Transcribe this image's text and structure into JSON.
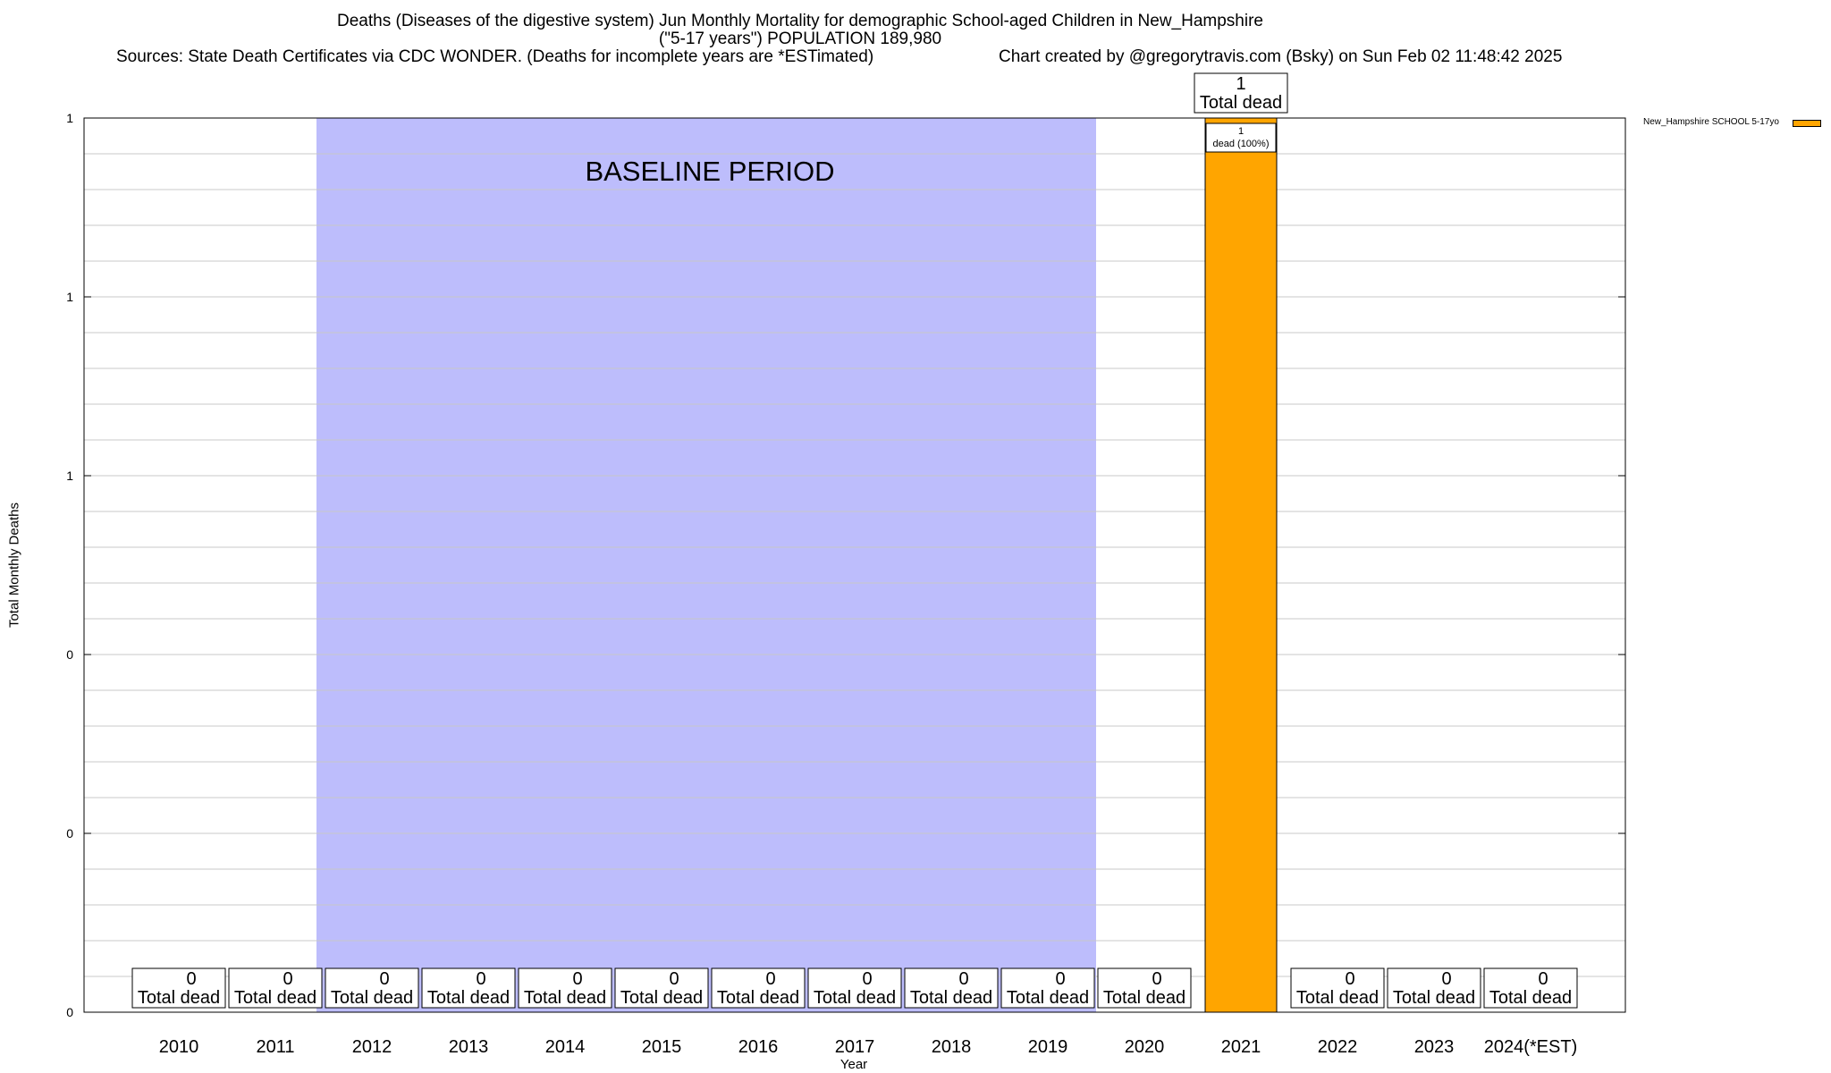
{
  "header": {
    "title_line1": "Deaths (Diseases of the digestive system) Jun Monthly Mortality for demographic School-aged Children in New_Hampshire",
    "title_line2": "(\"5-17 years\") POPULATION 189,980",
    "sources": "Sources: State Death Certificates via CDC WONDER. (Deaths for incomplete years are *ESTimated)",
    "credit": "Chart created by @gregorytravis.com (Bsky) on Sun Feb 02 11:48:42 2025"
  },
  "chart_data": {
    "type": "bar",
    "xlabel": "Year",
    "ylabel": "Total Monthly Deaths",
    "categories": [
      "2010",
      "2011",
      "2012",
      "2013",
      "2014",
      "2015",
      "2016",
      "2017",
      "2018",
      "2019",
      "2020",
      "2021",
      "2022",
      "2023",
      "2024(*EST)"
    ],
    "series": [
      {
        "name": "New_Hampshire SCHOOL 5-17yo",
        "color": "#ffa500",
        "values": [
          0,
          0,
          0,
          0,
          0,
          0,
          0,
          0,
          0,
          0,
          0,
          1,
          0,
          0,
          0
        ]
      }
    ],
    "ylim": [
      0,
      1
    ],
    "y_tick_labels": [
      "0",
      "0",
      "0",
      "1",
      "1",
      "1"
    ],
    "grid": true,
    "legend_position": "top-right",
    "total_label_text": "Total dead",
    "segment_label": {
      "category": "2021",
      "count": "1",
      "text": "dead (100%)"
    },
    "baseline": {
      "label": "BASELINE PERIOD",
      "start": "2012",
      "end": "2019",
      "color": "#bdbdfc"
    }
  }
}
